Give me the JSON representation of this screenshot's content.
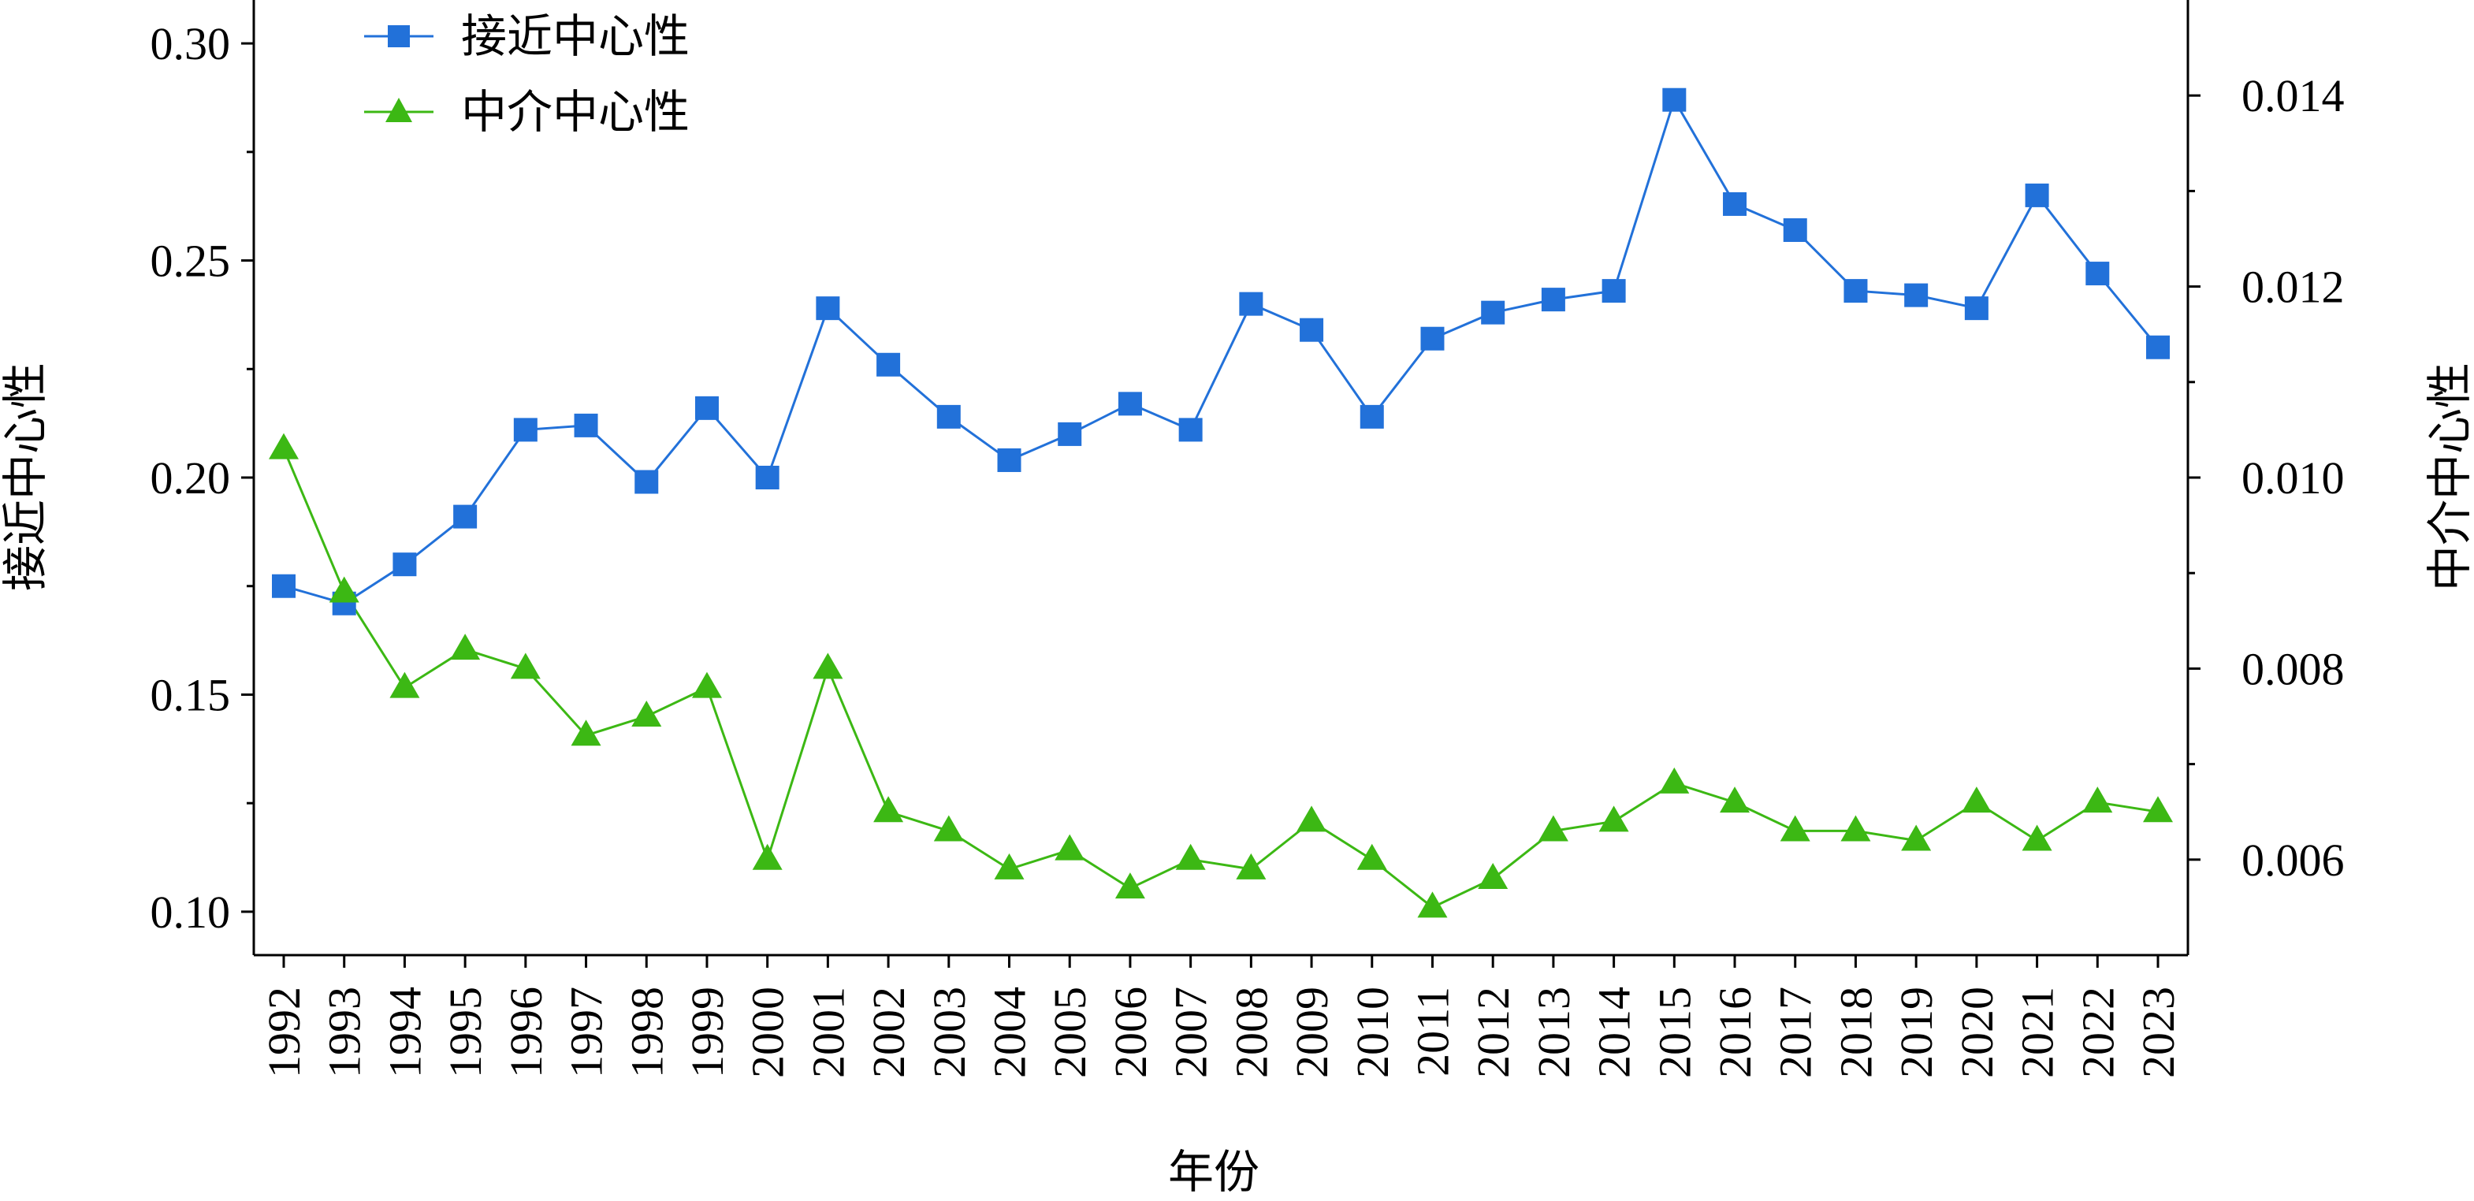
{
  "chart_data": {
    "type": "line",
    "title": "",
    "xlabel": "年份",
    "ylabel_left": "接近中心性",
    "ylabel_right": "中介中心性",
    "ylim_left": [
      0.09,
      0.31
    ],
    "ylim_right": [
      0.005,
      0.015
    ],
    "yticks_left": [
      "0.10",
      "0.15",
      "0.20",
      "0.25",
      "0.30"
    ],
    "yticks_right": [
      "0.006",
      "0.008",
      "0.010",
      "0.012",
      "0.014"
    ],
    "grid": false,
    "legend": "top-left",
    "categories": [
      "1992",
      "1993",
      "1994",
      "1995",
      "1996",
      "1997",
      "1998",
      "1999",
      "2000",
      "2001",
      "2002",
      "2003",
      "2004",
      "2005",
      "2006",
      "2007",
      "2008",
      "2009",
      "2010",
      "2011",
      "2012",
      "2013",
      "2014",
      "2015",
      "2016",
      "2017",
      "2018",
      "2019",
      "2020",
      "2021",
      "2022",
      "2023"
    ],
    "series": [
      {
        "name": "接近中心性",
        "axis": "left",
        "marker": "square",
        "color": "#2271d9",
        "values": [
          0.175,
          0.171,
          0.18,
          0.191,
          0.211,
          0.212,
          0.199,
          0.216,
          0.2,
          0.239,
          0.226,
          0.214,
          0.204,
          0.21,
          0.217,
          0.211,
          0.24,
          0.234,
          0.214,
          0.232,
          0.238,
          0.241,
          0.243,
          0.287,
          0.263,
          0.257,
          0.243,
          0.242,
          0.239,
          0.265,
          0.247,
          0.23
        ]
      },
      {
        "name": "中介中心性",
        "axis": "right",
        "marker": "triangle",
        "color": "#3cb814",
        "values": [
          0.0103,
          0.0088,
          0.0078,
          0.0082,
          0.008,
          0.0073,
          0.0075,
          0.0078,
          0.006,
          0.008,
          0.0065,
          0.0063,
          0.0059,
          0.0061,
          0.0057,
          0.006,
          0.0059,
          0.0064,
          0.006,
          0.0055,
          0.0058,
          0.0063,
          0.0064,
          0.0068,
          0.0066,
          0.0063,
          0.0063,
          0.0062,
          0.0066,
          0.0062,
          0.0066,
          0.0065
        ]
      }
    ]
  }
}
